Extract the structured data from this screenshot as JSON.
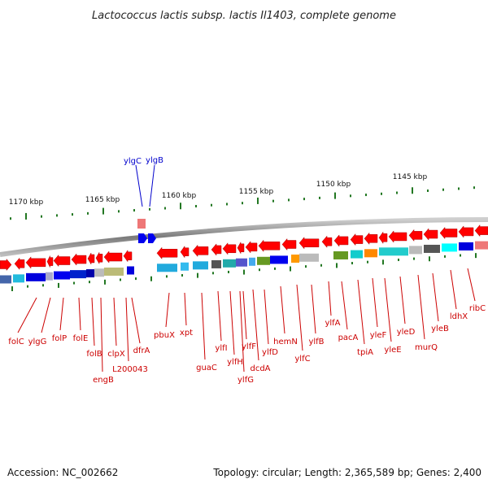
{
  "title": "Lactococcus lactis subsp. lactis Il1403, complete genome",
  "footer": {
    "accession": "Accession: NC_002662",
    "info": "Topology: circular; Length: 2,365,589 bp; Genes: 2,400"
  },
  "colors": {
    "backbone": "#888888",
    "gene": "#ff0000",
    "tick": "#227722",
    "label_red": "#cc0000",
    "label_blue": "#0000cc"
  },
  "scale_labels": [
    "1170 kbp",
    "1165 kbp",
    "1160 kbp",
    "1155 kbp",
    "1150 kbp",
    "1145 kbp"
  ],
  "features_blue": [
    "ylgC",
    "ylgB"
  ],
  "gene_labels": [
    "folC",
    "ylgG",
    "folP",
    "folE",
    "folB",
    "engB",
    "clpX",
    "L200043",
    "dfrA",
    "pbuX",
    "xpt",
    "guaC",
    "ylfI",
    "ylfH",
    "ylfG",
    "ylfF",
    "dcdA",
    "ylfD",
    "hemN",
    "ylfC",
    "ylfB",
    "ylfA",
    "pacA",
    "tpiA",
    "yleF",
    "yleE",
    "yleD",
    "murQ",
    "yleB",
    "ldhX",
    "ribC"
  ]
}
